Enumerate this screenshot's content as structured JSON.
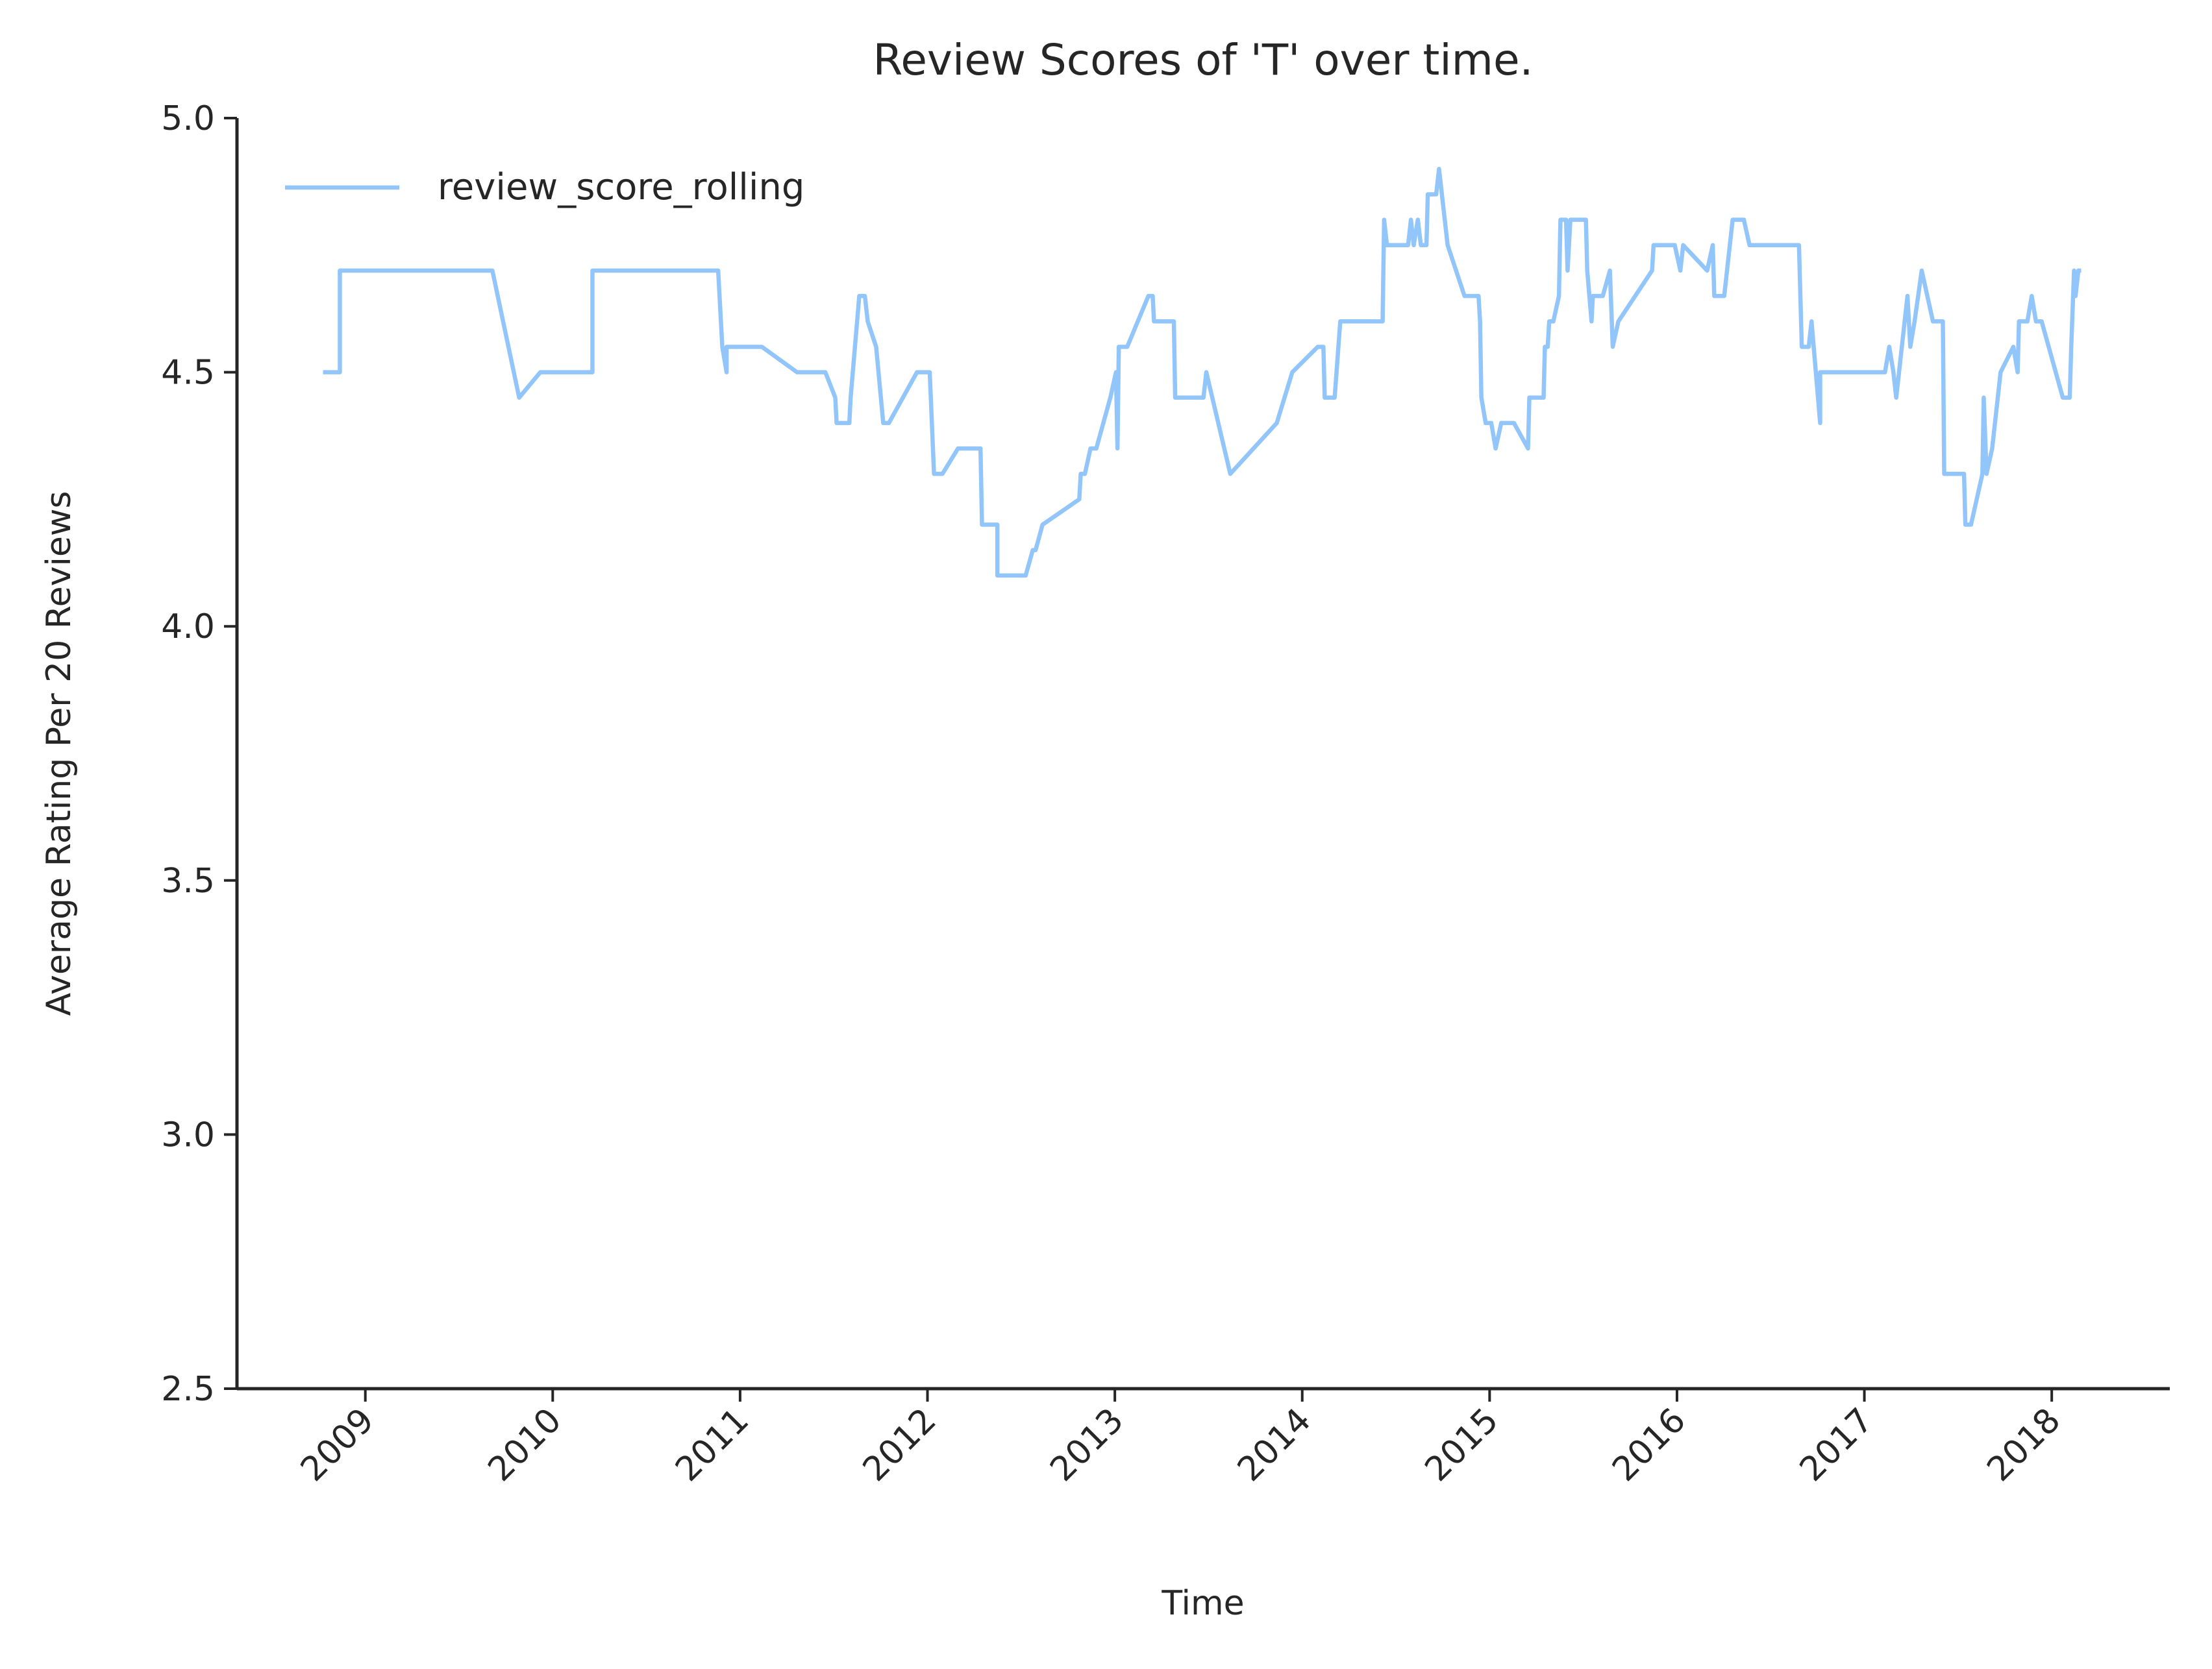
{
  "chart_data": {
    "type": "line",
    "title": "Review Scores of 'T' over time.",
    "x_label": "Time",
    "y_label": "Average Rating Per 20 Reviews",
    "x": [
      2008.774,
      2008.864,
      2008.864,
      2009.678,
      2009.821,
      2009.934,
      2010.212,
      2010.212,
      2010.883,
      2010.905,
      2010.928,
      2010.928,
      2011.116,
      2011.304,
      2011.455,
      2011.508,
      2011.515,
      2011.583,
      2011.59,
      2011.636,
      2011.666,
      2011.681,
      2011.726,
      2011.764,
      2011.794,
      2011.944,
      2012.012,
      2012.035,
      2012.08,
      2012.163,
      2012.283,
      2012.291,
      2012.373,
      2012.373,
      2012.524,
      2012.562,
      2012.577,
      2012.614,
      2012.81,
      2012.818,
      2012.84,
      2012.87,
      2012.901,
      2012.976,
      2013.006,
      2013.014,
      2013.021,
      2013.066,
      2013.179,
      2013.202,
      2013.209,
      2013.315,
      2013.322,
      2013.473,
      2013.488,
      2013.616,
      2013.864,
      2013.947,
      2014.083,
      2014.113,
      2014.12,
      2014.173,
      2014.203,
      2014.429,
      2014.437,
      2014.452,
      2014.565,
      2014.58,
      2014.595,
      2014.617,
      2014.633,
      2014.663,
      2014.67,
      2014.715,
      2014.73,
      2014.776,
      2014.866,
      2014.941,
      2014.949,
      2014.956,
      2014.979,
      2015.009,
      2015.032,
      2015.062,
      2015.13,
      2015.205,
      2015.212,
      2015.288,
      2015.295,
      2015.31,
      2015.318,
      2015.34,
      2015.37,
      2015.378,
      2015.408,
      2015.416,
      2015.431,
      2015.514,
      2015.521,
      2015.544,
      2015.551,
      2015.604,
      2015.642,
      2015.657,
      2015.687,
      2015.867,
      2015.875,
      2015.988,
      2016.018,
      2016.033,
      2016.161,
      2016.191,
      2016.199,
      2016.252,
      2016.297,
      2016.357,
      2016.387,
      2016.651,
      2016.666,
      2016.703,
      2016.718,
      2016.764,
      2016.764,
      2017.11,
      2017.133,
      2017.155,
      2017.17,
      2017.215,
      2017.23,
      2017.245,
      2017.268,
      2017.306,
      2017.366,
      2017.419,
      2017.426,
      2017.532,
      2017.539,
      2017.569,
      2017.63,
      2017.637,
      2017.652,
      2017.682,
      2017.727,
      2017.795,
      2017.818,
      2017.825,
      2017.87,
      2017.893,
      2017.916,
      2017.946,
      2018.059,
      2018.096,
      2018.104,
      2018.119,
      2018.127,
      2018.142,
      2018.157
    ],
    "series": [
      {
        "name": "review_score_rolling",
        "color": "#92c5f9",
        "values": [
          4.5,
          4.5,
          4.7,
          4.7,
          4.45,
          4.5,
          4.5,
          4.7,
          4.7,
          4.55,
          4.5,
          4.55,
          4.55,
          4.5,
          4.5,
          4.45,
          4.4,
          4.4,
          4.45,
          4.65,
          4.65,
          4.6,
          4.55,
          4.4,
          4.4,
          4.5,
          4.5,
          4.3,
          4.3,
          4.35,
          4.35,
          4.2,
          4.2,
          4.1,
          4.1,
          4.15,
          4.15,
          4.2,
          4.25,
          4.3,
          4.3,
          4.35,
          4.35,
          4.45,
          4.5,
          4.35,
          4.55,
          4.55,
          4.65,
          4.65,
          4.6,
          4.6,
          4.45,
          4.45,
          4.5,
          4.3,
          4.4,
          4.5,
          4.55,
          4.55,
          4.45,
          4.45,
          4.6,
          4.6,
          4.8,
          4.75,
          4.75,
          4.8,
          4.75,
          4.8,
          4.75,
          4.75,
          4.85,
          4.85,
          4.9,
          4.75,
          4.65,
          4.65,
          4.6,
          4.45,
          4.4,
          4.4,
          4.35,
          4.4,
          4.4,
          4.35,
          4.45,
          4.45,
          4.55,
          4.55,
          4.6,
          4.6,
          4.65,
          4.8,
          4.8,
          4.7,
          4.8,
          4.8,
          4.7,
          4.6,
          4.65,
          4.65,
          4.7,
          4.55,
          4.6,
          4.7,
          4.75,
          4.75,
          4.7,
          4.75,
          4.7,
          4.75,
          4.65,
          4.65,
          4.8,
          4.8,
          4.75,
          4.75,
          4.55,
          4.55,
          4.6,
          4.4,
          4.5,
          4.5,
          4.55,
          4.5,
          4.45,
          4.6,
          4.65,
          4.55,
          4.6,
          4.7,
          4.6,
          4.6,
          4.3,
          4.3,
          4.2,
          4.2,
          4.3,
          4.45,
          4.3,
          4.35,
          4.5,
          4.55,
          4.5,
          4.6,
          4.6,
          4.65,
          4.6,
          4.6,
          4.45,
          4.45,
          4.55,
          4.7,
          4.65,
          4.7,
          4.7
        ]
      }
    ],
    "xlim": [
      2008.315,
      2018.63
    ],
    "xticks": [
      2009,
      2010,
      2011,
      2012,
      2013,
      2014,
      2015,
      2016,
      2017,
      2018
    ],
    "ylim": [
      2.5,
      5.0
    ],
    "yticks": [
      2.5,
      {
        "value": 3,
        "label": "3.0"
      },
      3.5,
      {
        "value": 4,
        "label": "4.0"
      },
      4.5,
      {
        "value": 5,
        "label": "5.0"
      }
    ],
    "legend": "upper left"
  }
}
